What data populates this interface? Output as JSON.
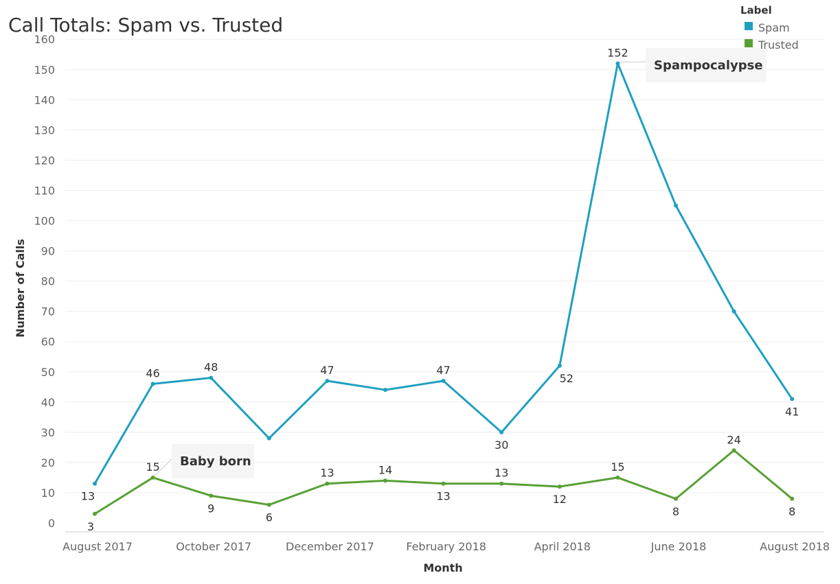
{
  "chart_data": {
    "type": "line",
    "title": "Call Totals: Spam vs. Trusted",
    "xlabel": "Month",
    "ylabel": "Number of Calls",
    "ylim": [
      0,
      160
    ],
    "y_ticks": [
      "0",
      "10",
      "20",
      "30",
      "40",
      "50",
      "60",
      "70",
      "80",
      "90",
      "100",
      "110",
      "120",
      "130",
      "140",
      "150",
      "160"
    ],
    "x_tick_labels": [
      "August 2017",
      "October 2017",
      "December 2017",
      "February 2018",
      "April 2018",
      "June 2018",
      "August 2018"
    ],
    "categories": [
      "Aug 2017",
      "Sep 2017",
      "Oct 2017",
      "Nov 2017",
      "Dec 2017",
      "Jan 2018",
      "Feb 2018",
      "Mar 2018",
      "Apr 2018",
      "May 2018",
      "Jun 2018",
      "Jul 2018",
      "Aug 2018"
    ],
    "grid": true,
    "legend": {
      "title": "Label",
      "position": "top-right",
      "entries": [
        {
          "name": "Spam",
          "color": "#1FA0C0"
        },
        {
          "name": "Trusted",
          "color": "#58A034"
        }
      ]
    },
    "series": [
      {
        "name": "Spam",
        "color": "#1FA0C0",
        "values": [
          13,
          46,
          48,
          28,
          47,
          44,
          47,
          30,
          52,
          152,
          105,
          70,
          41
        ],
        "labels": [
          "13",
          "46",
          "48",
          "",
          "47",
          "",
          "47",
          "30",
          "52",
          "152",
          "",
          "",
          "41"
        ],
        "label_side": [
          "below",
          "above",
          "above",
          "",
          "above",
          "",
          "above",
          "below",
          "below",
          "above",
          "",
          "",
          "below"
        ]
      },
      {
        "name": "Trusted",
        "color": "#58A034",
        "values": [
          3,
          15,
          9,
          6,
          13,
          14,
          13,
          13,
          12,
          15,
          8,
          24,
          8
        ],
        "labels": [
          "3",
          "15",
          "9",
          "6",
          "13",
          "14",
          "13",
          "13",
          "12",
          "15",
          "8",
          "24",
          "8"
        ],
        "label_side": [
          "below",
          "above",
          "below",
          "below",
          "above",
          "above",
          "below",
          "above",
          "below",
          "above",
          "below",
          "above",
          "below"
        ]
      }
    ],
    "annotations": [
      {
        "text": "Spampocalypse",
        "series": "Spam",
        "point_index": 9
      },
      {
        "text": "Baby born",
        "series": "Trusted",
        "point_index": 1
      }
    ]
  }
}
